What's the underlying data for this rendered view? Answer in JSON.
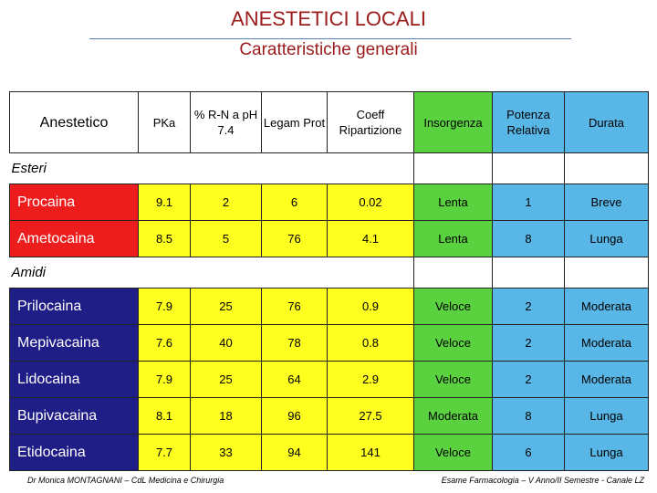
{
  "title": "ANESTETICI LOCALI",
  "subtitle": "Caratteristiche generali",
  "colors": {
    "title": "#9b1b1b",
    "ester_name_bg": "#ee1d1d",
    "amide_name_bg": "#1e1e86",
    "yellow": "#ffff1f",
    "green": "#5ad13f",
    "blue": "#58b7e6"
  },
  "table": {
    "headers": [
      "Anestetico",
      "PKa",
      "% R-N a pH 7.4",
      "Legam Prot",
      "Coeff Ripartizione",
      "Insorgenza",
      "Potenza Relativa",
      "Durata"
    ],
    "section_esteri": "Esteri",
    "section_amidi": "Amidi",
    "esteri": [
      [
        "Procaina",
        "9.1",
        "2",
        "6",
        "0.02",
        "Lenta",
        "1",
        "Breve"
      ],
      [
        "Ametocaina",
        "8.5",
        "5",
        "76",
        "4.1",
        "Lenta",
        "8",
        "Lunga"
      ]
    ],
    "amidi": [
      [
        "Prilocaina",
        "7.9",
        "25",
        "76",
        "0.9",
        "Veloce",
        "2",
        "Moderata"
      ],
      [
        "Mepivacaina",
        "7.6",
        "40",
        "78",
        "0.8",
        "Veloce",
        "2",
        "Moderata"
      ],
      [
        "Lidocaina",
        "7.9",
        "25",
        "64",
        "2.9",
        "Veloce",
        "2",
        "Moderata"
      ],
      [
        "Bupivacaina",
        "8.1",
        "18",
        "96",
        "27.5",
        "Moderata",
        "8",
        "Lunga"
      ],
      [
        "Etidocaina",
        "7.7",
        "33",
        "94",
        "141",
        "Veloce",
        "6",
        "Lunga"
      ]
    ]
  },
  "footer_left": "Dr Monica MONTAGNANI – CdL Medicina e Chirurgia",
  "footer_right": "Esame Farmacologia – V Anno/II Semestre - Canale LZ"
}
